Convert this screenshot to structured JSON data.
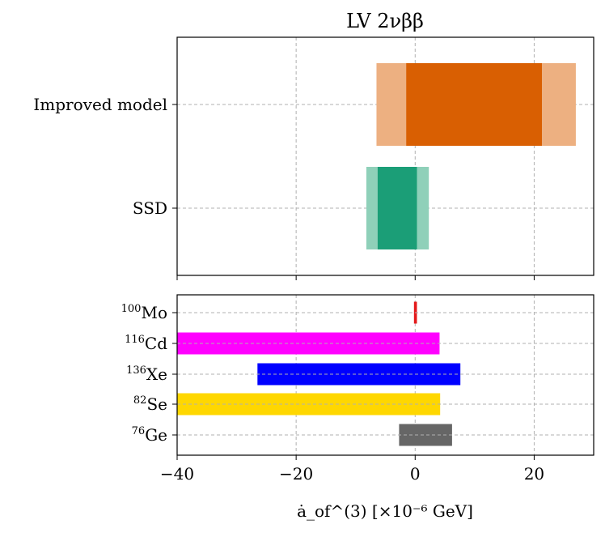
{
  "chart_data": {
    "title": "LV 2νββ",
    "xlabel": "ȧ_of^(3) [×10⁻⁶ GeV]",
    "xlim": [
      -40,
      30
    ],
    "xticks": [
      -40,
      -20,
      0,
      20
    ],
    "xtick_labels": [
      "−40",
      "−20",
      "0",
      "20"
    ],
    "grid": true,
    "panels": [
      {
        "name": "top",
        "type": "horizontal-interval",
        "categories": [
          "Improved model",
          "SSD"
        ],
        "intervals": [
          {
            "label": "Improved model",
            "outer": [
              -6.5,
              27.0
            ],
            "inner": [
              -1.5,
              21.3
            ],
            "outer_color": "#edb081",
            "inner_color": "#d95f02"
          },
          {
            "label": "SSD",
            "outer": [
              -8.2,
              2.3
            ],
            "inner": [
              -6.3,
              0.3
            ],
            "outer_color": "#8fd0b9",
            "inner_color": "#1b9e77"
          }
        ]
      },
      {
        "name": "bottom",
        "type": "horizontal-bar-range",
        "categories": [
          {
            "label": "Mo",
            "mass": "100"
          },
          {
            "label": "Cd",
            "mass": "116"
          },
          {
            "label": "Xe",
            "mass": "136"
          },
          {
            "label": "Se",
            "mass": "82"
          },
          {
            "label": "Ge",
            "mass": "76"
          }
        ],
        "ranges": [
          {
            "isotope": "100Mo",
            "range": [
              -0.2,
              0.3
            ],
            "color": "#e41a1c"
          },
          {
            "isotope": "116Cd",
            "range": [
              -40,
              4.1
            ],
            "color": "#ff00ff"
          },
          {
            "isotope": "136Xe",
            "range": [
              -26.5,
              7.6
            ],
            "color": "#0000ff"
          },
          {
            "isotope": "82Se",
            "range": [
              -40,
              4.2
            ],
            "color": "#ffd700"
          },
          {
            "isotope": "76Ge",
            "range": [
              -2.7,
              6.2
            ],
            "color": "#666666"
          }
        ]
      }
    ]
  }
}
